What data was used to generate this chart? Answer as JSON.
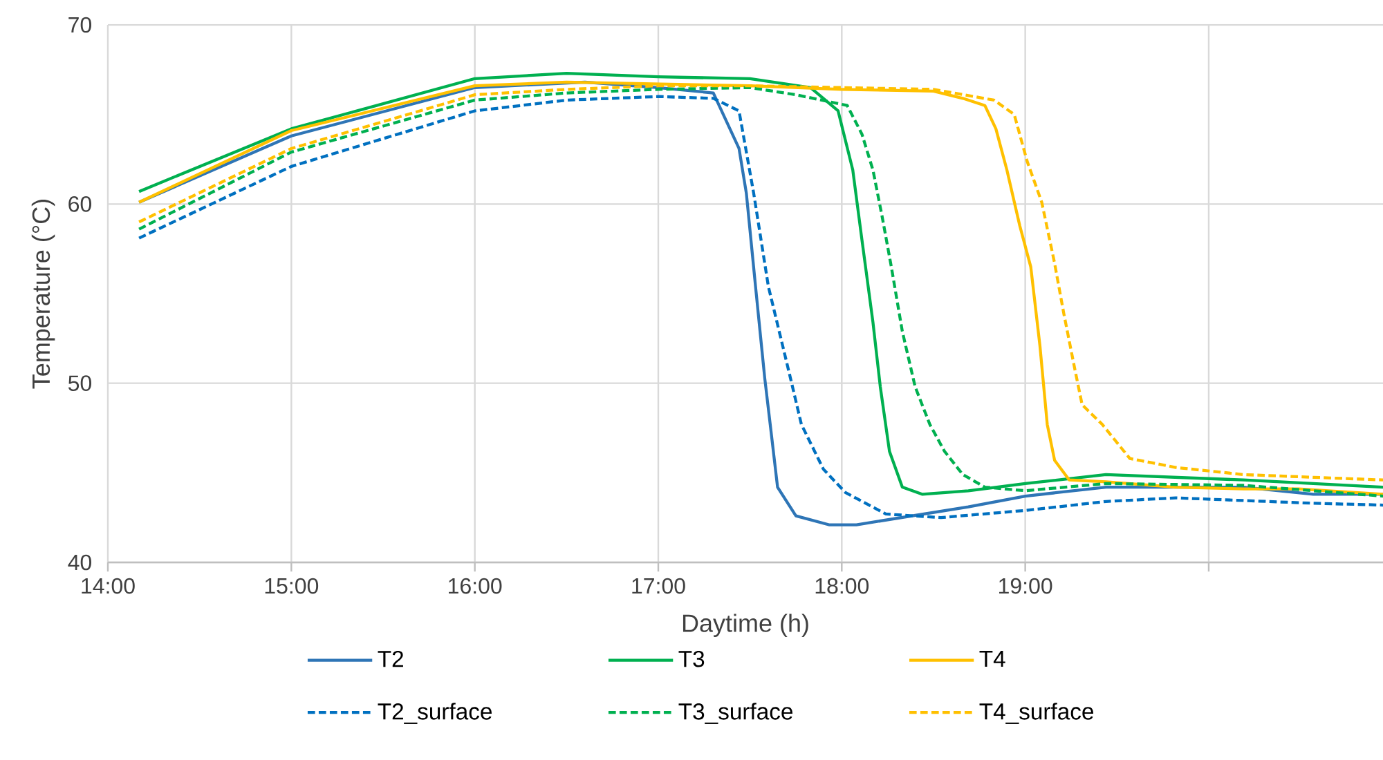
{
  "chart_data": {
    "type": "line",
    "xlabel": "Daytime (h)",
    "ylabel": "Temperature (°C)",
    "xlim": [
      14,
      20.95
    ],
    "ylim": [
      40,
      70
    ],
    "xticks": [
      {
        "value": 14,
        "label": "14:00"
      },
      {
        "value": 15,
        "label": "15:00"
      },
      {
        "value": 16,
        "label": "16:00"
      },
      {
        "value": 17,
        "label": "17:00"
      },
      {
        "value": 18,
        "label": "18:00"
      },
      {
        "value": 19,
        "label": "19:00"
      },
      {
        "value": 20,
        "label": null
      }
    ],
    "yticks": [
      40,
      50,
      60,
      70
    ],
    "grid": true,
    "legend": "bottom",
    "marker": "none",
    "series": [
      {
        "name": "T2",
        "color": "#2e75b6",
        "line_style": "solid",
        "x": [
          14.17,
          15,
          16,
          16.6,
          17,
          17.3,
          17.44,
          17.48,
          17.53,
          17.58,
          17.61,
          17.65,
          17.75,
          17.93,
          18.08,
          18.69,
          19,
          19.44,
          20.19,
          20.57,
          20.95
        ],
        "values": [
          60.1,
          63.8,
          66.5,
          66.8,
          66.5,
          66.2,
          63.1,
          60.6,
          55.4,
          50.3,
          47.7,
          44.2,
          42.6,
          42.1,
          42.1,
          43.1,
          43.7,
          44.2,
          44.2,
          43.8,
          43.8
        ]
      },
      {
        "name": "T3",
        "color": "#00b050",
        "line_style": "solid",
        "x": [
          14.17,
          15,
          16,
          16.5,
          17,
          17.5,
          17.83,
          17.98,
          18.06,
          18.11,
          18.17,
          18.21,
          18.26,
          18.33,
          18.44,
          18.69,
          19,
          19.44,
          20.19,
          20.95
        ],
        "values": [
          60.7,
          64.2,
          67.0,
          67.3,
          67.1,
          67.0,
          66.5,
          65.2,
          61.9,
          58.0,
          53.4,
          49.8,
          46.2,
          44.2,
          43.8,
          44.0,
          44.4,
          44.9,
          44.6,
          44.2
        ]
      },
      {
        "name": "T4",
        "color": "#ffc000",
        "line_style": "solid",
        "x": [
          14.17,
          15,
          16,
          16.5,
          17,
          17.5,
          18,
          18.5,
          18.66,
          18.78,
          18.84,
          18.9,
          18.97,
          19.03,
          19.08,
          19.12,
          19.16,
          19.24,
          19.44,
          19.82,
          20.19,
          20.49,
          20.95
        ],
        "values": [
          60.1,
          64.1,
          66.6,
          66.8,
          66.7,
          66.6,
          66.4,
          66.3,
          65.9,
          65.5,
          64.2,
          61.9,
          58.8,
          56.5,
          52.1,
          47.7,
          45.7,
          44.6,
          44.5,
          44.2,
          44.1,
          44.1,
          43.8
        ]
      },
      {
        "name": "T2_surface",
        "color": "#0070c0",
        "line_style": "dashed",
        "x": [
          14.17,
          15,
          16,
          16.5,
          17,
          17.3,
          17.44,
          17.52,
          17.6,
          17.72,
          17.78,
          17.9,
          18.02,
          18.24,
          18.54,
          19,
          19.44,
          19.82,
          20.57,
          20.95
        ],
        "values": [
          58.1,
          62.1,
          65.2,
          65.8,
          66.0,
          65.9,
          65.2,
          60.6,
          55.4,
          50.3,
          47.7,
          45.2,
          43.9,
          42.7,
          42.5,
          42.9,
          43.4,
          43.6,
          43.3,
          43.2
        ]
      },
      {
        "name": "T3_surface",
        "color": "#00b050",
        "line_style": "dashed",
        "x": [
          14.17,
          15,
          16,
          16.5,
          17,
          17.5,
          17.75,
          18.03,
          18.11,
          18.17,
          18.22,
          18.27,
          18.33,
          18.4,
          18.48,
          18.56,
          18.66,
          18.78,
          19,
          19.44,
          20.19,
          20.95
        ],
        "values": [
          58.6,
          62.9,
          65.8,
          66.2,
          66.4,
          66.5,
          66.1,
          65.5,
          63.9,
          61.9,
          59.3,
          56.5,
          52.9,
          49.8,
          47.7,
          46.2,
          44.9,
          44.2,
          44.0,
          44.4,
          44.3,
          43.7
        ]
      },
      {
        "name": "T4_surface",
        "color": "#ffc000",
        "line_style": "dashed",
        "x": [
          14.17,
          15,
          16,
          16.5,
          17,
          17.5,
          18,
          18.5,
          18.83,
          18.94,
          19.01,
          19.09,
          19.16,
          19.21,
          19.27,
          19.31,
          19.42,
          19.57,
          19.82,
          20.19,
          20.95
        ],
        "values": [
          59.0,
          63.1,
          66.1,
          66.4,
          66.6,
          66.6,
          66.5,
          66.4,
          65.8,
          65.0,
          62.4,
          60.1,
          56.7,
          53.9,
          50.8,
          48.8,
          47.7,
          45.8,
          45.3,
          44.9,
          44.6
        ]
      }
    ]
  }
}
